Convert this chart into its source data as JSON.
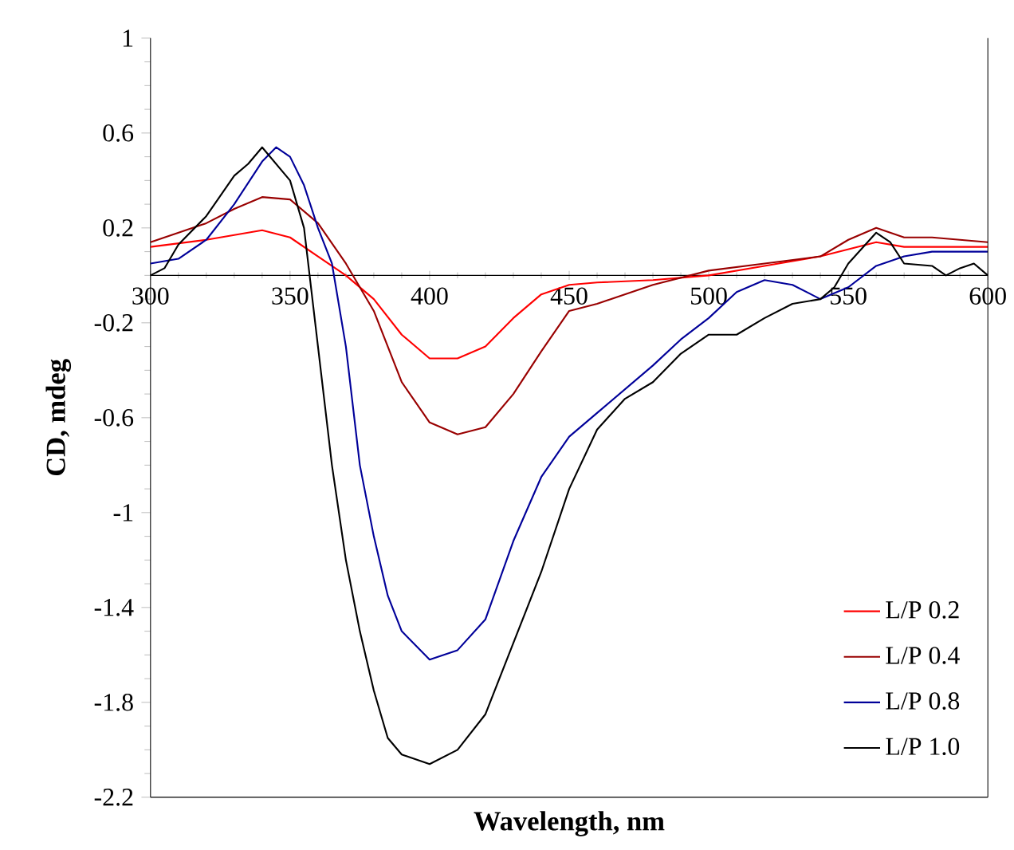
{
  "chart_data": {
    "type": "line",
    "xlabel": "Wavelength, nm",
    "ylabel": "CD, mdeg",
    "xlim": [
      300,
      600
    ],
    "ylim": [
      -2.2,
      1
    ],
    "xticks": [
      300,
      350,
      400,
      450,
      500,
      550,
      600
    ],
    "yticks": [
      1,
      0.6,
      0.2,
      -0.2,
      -0.6,
      -1,
      -1.4,
      -1.8,
      -2.2
    ],
    "legend": "bottom right",
    "grid": false,
    "marker": "none",
    "line_style": "solid",
    "series": [
      {
        "name": "L/P 0.2",
        "color": "#ff0000",
        "x": [
          300,
          320,
          340,
          350,
          360,
          370,
          380,
          390,
          400,
          410,
          420,
          430,
          440,
          450,
          460,
          480,
          500,
          520,
          540,
          560,
          570,
          580,
          600
        ],
        "values": [
          0.12,
          0.15,
          0.19,
          0.16,
          0.08,
          0.0,
          -0.1,
          -0.25,
          -0.35,
          -0.35,
          -0.3,
          -0.18,
          -0.08,
          -0.04,
          -0.03,
          -0.02,
          0.0,
          0.04,
          0.08,
          0.14,
          0.12,
          0.12,
          0.12
        ]
      },
      {
        "name": "L/P 0.4",
        "color": "#990000",
        "x": [
          300,
          320,
          330,
          340,
          350,
          360,
          370,
          380,
          390,
          400,
          410,
          420,
          430,
          440,
          450,
          460,
          470,
          480,
          500,
          520,
          540,
          550,
          560,
          570,
          580,
          600
        ],
        "values": [
          0.14,
          0.22,
          0.28,
          0.33,
          0.32,
          0.22,
          0.05,
          -0.15,
          -0.45,
          -0.62,
          -0.67,
          -0.64,
          -0.5,
          -0.32,
          -0.15,
          -0.12,
          -0.08,
          -0.04,
          0.02,
          0.05,
          0.08,
          0.15,
          0.2,
          0.16,
          0.16,
          0.14
        ]
      },
      {
        "name": "L/P 0.8",
        "color": "#000099",
        "x": [
          300,
          310,
          320,
          330,
          340,
          345,
          350,
          355,
          360,
          365,
          370,
          375,
          380,
          385,
          390,
          400,
          410,
          420,
          430,
          440,
          450,
          460,
          470,
          480,
          490,
          500,
          510,
          520,
          530,
          540,
          550,
          560,
          570,
          580,
          600
        ],
        "values": [
          0.05,
          0.07,
          0.15,
          0.3,
          0.48,
          0.54,
          0.5,
          0.38,
          0.2,
          0.05,
          -0.3,
          -0.8,
          -1.1,
          -1.35,
          -1.5,
          -1.62,
          -1.58,
          -1.45,
          -1.12,
          -0.85,
          -0.68,
          -0.58,
          -0.48,
          -0.38,
          -0.27,
          -0.18,
          -0.07,
          -0.02,
          -0.04,
          -0.1,
          -0.05,
          0.04,
          0.08,
          0.1,
          0.1
        ]
      },
      {
        "name": "L/P 1.0",
        "color": "#000000",
        "x": [
          300,
          305,
          310,
          320,
          330,
          335,
          340,
          350,
          355,
          360,
          365,
          370,
          375,
          380,
          385,
          390,
          400,
          410,
          420,
          430,
          440,
          450,
          460,
          470,
          480,
          490,
          500,
          510,
          520,
          530,
          540,
          545,
          550,
          560,
          565,
          570,
          580,
          585,
          590,
          595,
          600
        ],
        "values": [
          0.0,
          0.03,
          0.13,
          0.25,
          0.42,
          0.47,
          0.54,
          0.4,
          0.2,
          -0.3,
          -0.8,
          -1.2,
          -1.5,
          -1.75,
          -1.95,
          -2.02,
          -2.06,
          -2.0,
          -1.85,
          -1.55,
          -1.25,
          -0.9,
          -0.65,
          -0.52,
          -0.45,
          -0.33,
          -0.25,
          -0.25,
          -0.18,
          -0.12,
          -0.1,
          -0.05,
          0.05,
          0.18,
          0.14,
          0.05,
          0.04,
          0.0,
          0.03,
          0.05,
          0.0
        ]
      }
    ]
  }
}
